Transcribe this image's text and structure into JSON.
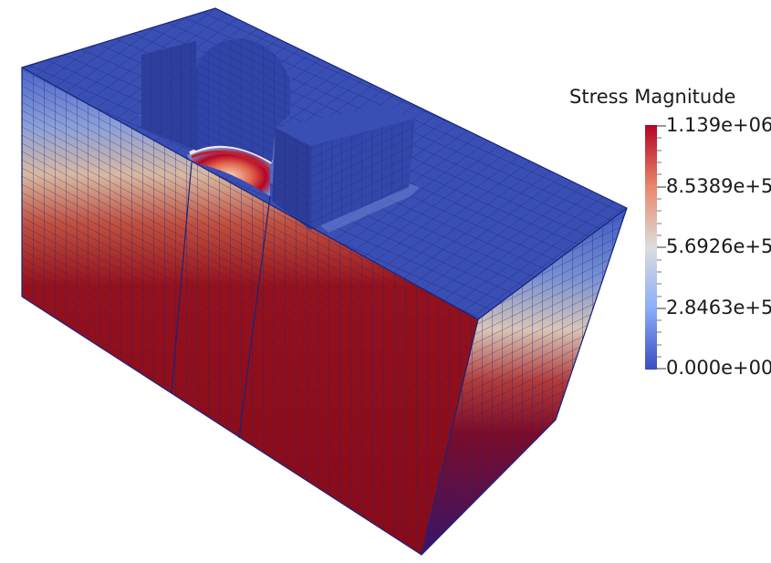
{
  "legend": {
    "title": "Stress Magnitude",
    "ticks": [
      "1.139e+06",
      "8.5389e+5",
      "5.6926e+5",
      "2.8463e+5",
      "0.000e+00"
    ],
    "colors": {
      "low": "#3b4cc0",
      "mid": "#dddddd",
      "high": "#b40426"
    }
  },
  "scene": {
    "mesh_line_color": "#1a237e",
    "top_face_color": "#3a4fb3",
    "low_stress_color": "#3b4cc0",
    "high_stress_color": "#8b0a16"
  }
}
